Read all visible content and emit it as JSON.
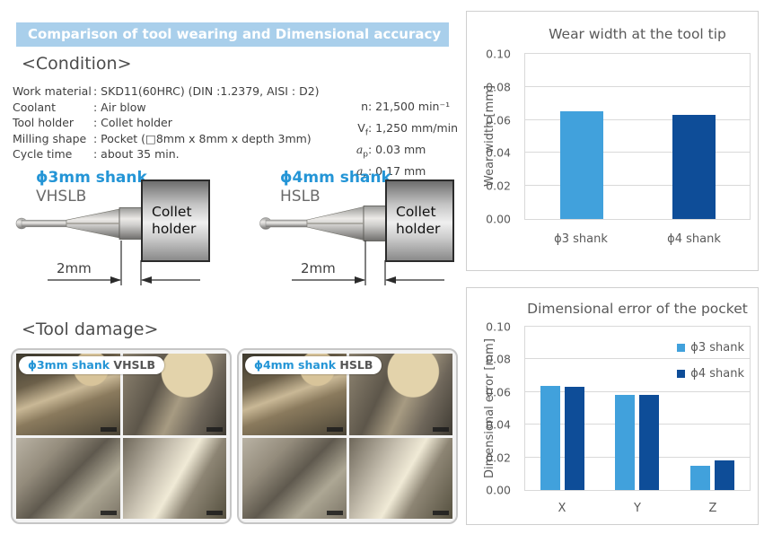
{
  "banner": {
    "title": "Comparison of tool wearing and Dimensional accuracy"
  },
  "conditions": {
    "heading": "<Condition>",
    "rows": [
      {
        "label": "Work material",
        "value": ": SKD11(60HRC) (DIN :1.2379, AISI : D2)"
      },
      {
        "label": "Coolant",
        "value": ": Air blow"
      },
      {
        "label": "Tool holder",
        "value": ": Collet holder"
      },
      {
        "label": "Milling shape",
        "value": ": Pocket (□8mm x 8mm x depth 3mm)"
      },
      {
        "label": "Cycle time",
        "value": ": about 35 min."
      }
    ],
    "params": [
      {
        "sym": "n",
        "sub": "",
        "value": ": 21,500 min⁻¹"
      },
      {
        "sym": "V",
        "sub": "f",
        "value": ": 1,250 mm/min"
      },
      {
        "sym": "a",
        "sub": "p",
        "value": ": 0.03 mm"
      },
      {
        "sym": "a",
        "sub": "e",
        "value": ": 0.17 mm"
      }
    ]
  },
  "diagrams": [
    {
      "shank_label": "ϕ3mm shank",
      "series_label": "VHSLB",
      "holder_line1": "Collet",
      "holder_line2": "holder",
      "dim_label": "2mm"
    },
    {
      "shank_label": "ϕ4mm shank",
      "series_label": "HSLB",
      "holder_line1": "Collet",
      "holder_line2": "holder",
      "dim_label": "2mm"
    }
  ],
  "tool_damage": {
    "heading": "<Tool damage>",
    "panels": [
      {
        "label_blue": "ϕ3mm shank",
        "label_gray": "VHSLB"
      },
      {
        "label_blue": "ϕ4mm shank",
        "label_gray": "HSLB"
      }
    ]
  },
  "chart_data": [
    {
      "type": "bar",
      "title": "Wear width at the tool tip",
      "ylabel": "Wear width [mm]",
      "xlabel": "",
      "ylim": [
        0,
        0.1
      ],
      "yticks": [
        "0.00",
        "0.02",
        "0.04",
        "0.06",
        "0.08",
        "0.10"
      ],
      "categories": [
        "ϕ3 shank",
        "ϕ4 shank"
      ],
      "values": [
        0.065,
        0.063
      ],
      "colors": [
        "#41a1dc",
        "#0e4d98"
      ],
      "grid": true,
      "legend": false
    },
    {
      "type": "bar",
      "title": "Dimensional error of the pocket",
      "ylabel": "Dimensional error [mm]",
      "xlabel": "",
      "ylim": [
        0,
        0.1
      ],
      "yticks": [
        "0.00",
        "0.02",
        "0.04",
        "0.06",
        "0.08",
        "0.10"
      ],
      "categories": [
        "X",
        "Y",
        "Z"
      ],
      "series": [
        {
          "name": "ϕ3 shank",
          "color": "#41a1dc",
          "values": [
            0.064,
            0.058,
            0.015
          ]
        },
        {
          "name": "ϕ4 shank",
          "color": "#0e4d98",
          "values": [
            0.063,
            0.058,
            0.018
          ]
        }
      ],
      "grid": true,
      "legend": "top-right"
    }
  ],
  "colors": {
    "banner_bg": "#a9cfeb",
    "accent_blue": "#2495d6",
    "bar_light": "#41a1dc",
    "bar_dark": "#0e4d98"
  }
}
